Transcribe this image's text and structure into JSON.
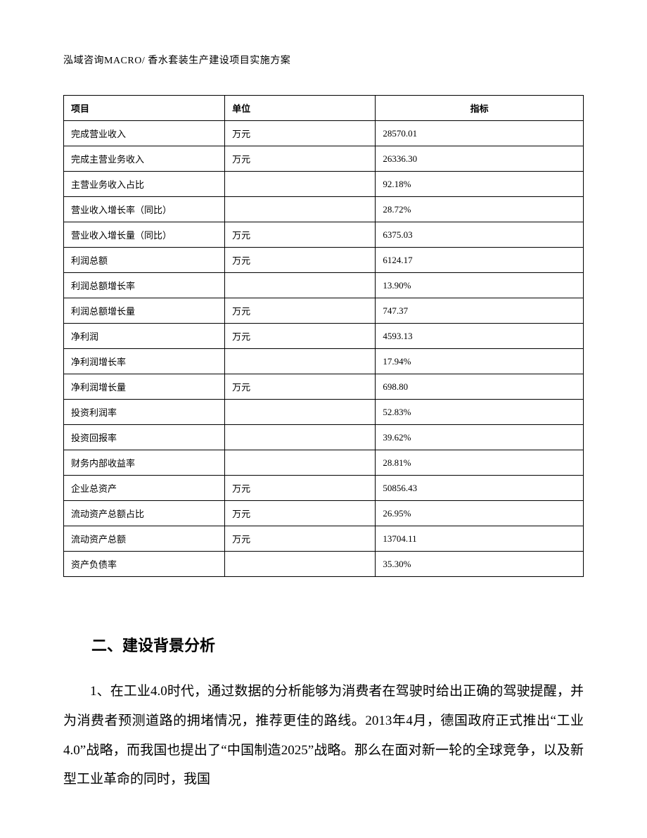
{
  "header": {
    "text": "泓域咨询MACRO/ 香水套装生产建设项目实施方案"
  },
  "table": {
    "columns": [
      "项目",
      "单位",
      "指标"
    ],
    "rows": [
      {
        "item": "完成营业收入",
        "unit": "万元",
        "value": "28570.01"
      },
      {
        "item": "完成主营业务收入",
        "unit": "万元",
        "value": "26336.30"
      },
      {
        "item": "主营业务收入占比",
        "unit": "",
        "value": "92.18%"
      },
      {
        "item": "营业收入增长率（同比）",
        "unit": "",
        "value": "28.72%"
      },
      {
        "item": "营业收入增长量（同比）",
        "unit": "万元",
        "value": "6375.03"
      },
      {
        "item": "利润总额",
        "unit": "万元",
        "value": "6124.17"
      },
      {
        "item": "利润总额增长率",
        "unit": "",
        "value": "13.90%"
      },
      {
        "item": "利润总额增长量",
        "unit": "万元",
        "value": "747.37"
      },
      {
        "item": "净利润",
        "unit": "万元",
        "value": "4593.13"
      },
      {
        "item": "净利润增长率",
        "unit": "",
        "value": "17.94%"
      },
      {
        "item": "净利润增长量",
        "unit": "万元",
        "value": "698.80"
      },
      {
        "item": "投资利润率",
        "unit": "",
        "value": "52.83%"
      },
      {
        "item": "投资回报率",
        "unit": "",
        "value": "39.62%"
      },
      {
        "item": "财务内部收益率",
        "unit": "",
        "value": "28.81%"
      },
      {
        "item": "企业总资产",
        "unit": "万元",
        "value": "50856.43"
      },
      {
        "item": "流动资产总额占比",
        "unit": "万元",
        "value": "26.95%"
      },
      {
        "item": "流动资产总额",
        "unit": "万元",
        "value": "13704.11"
      },
      {
        "item": "资产负债率",
        "unit": "",
        "value": "35.30%"
      }
    ]
  },
  "section": {
    "heading": "二、建设背景分析",
    "paragraph": "1、在工业4.0时代，通过数据的分析能够为消费者在驾驶时给出正确的驾驶提醒，并为消费者预测道路的拥堵情况，推荐更佳的路线。2013年4月，德国政府正式推出“工业4.0”战略，而我国也提出了“中国制造2025”战略。那么在面对新一轮的全球竞争，以及新型工业革命的同时，我国"
  }
}
